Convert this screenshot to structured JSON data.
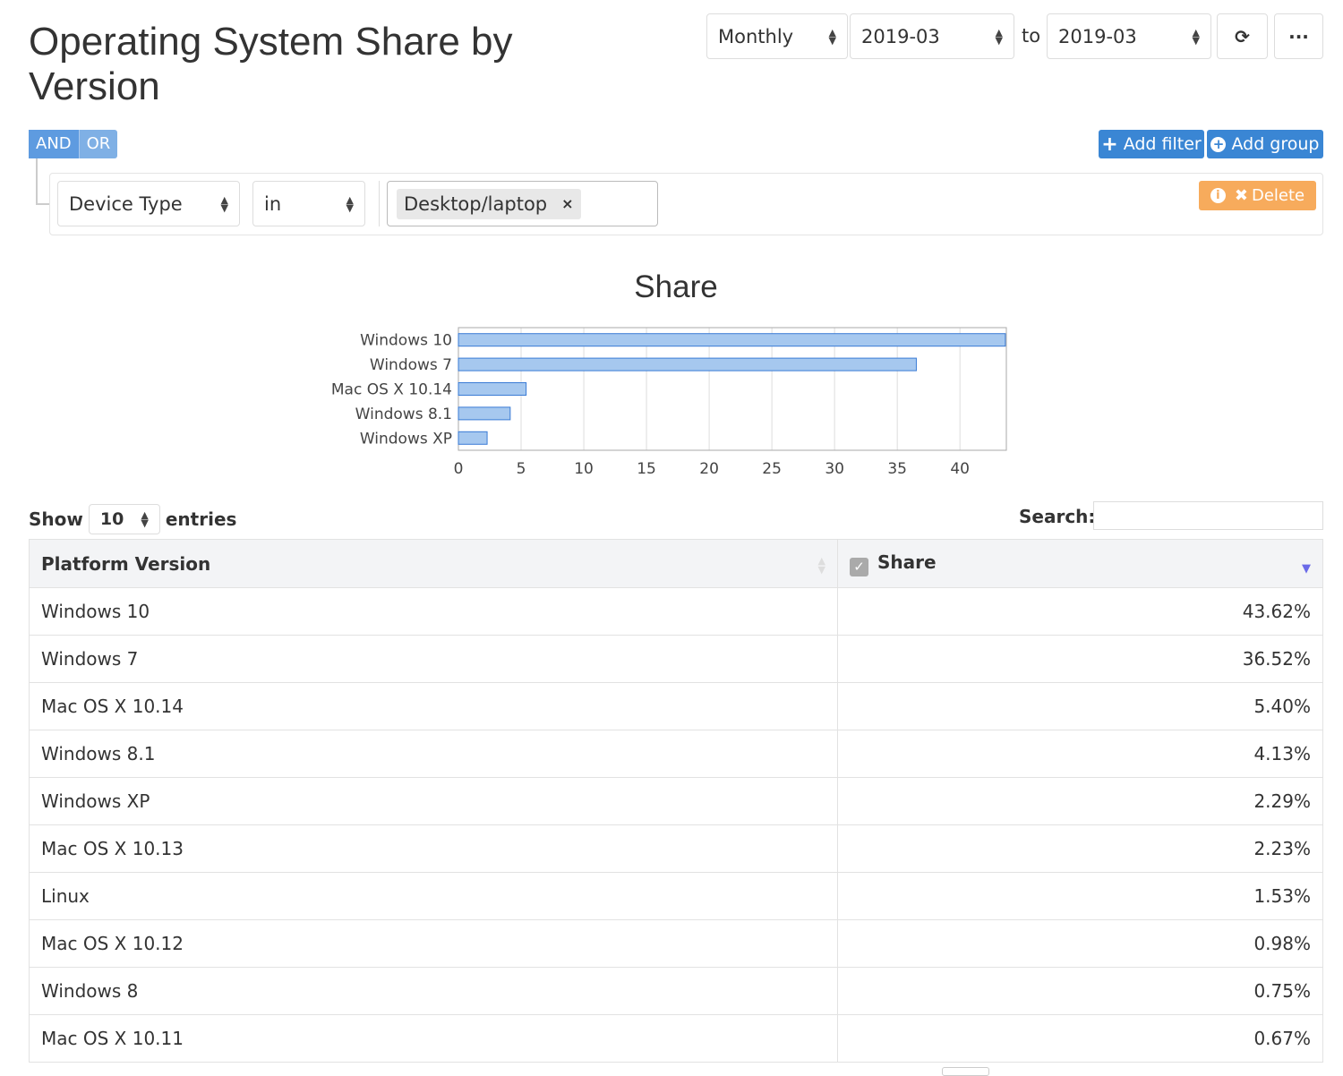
{
  "title": "Operating System Share by Version",
  "controls": {
    "period": "Monthly",
    "from": "2019-03",
    "to_label": "to",
    "to": "2019-03",
    "refresh_icon": "refresh-icon",
    "more_icon": "ellipsis-icon"
  },
  "filters": {
    "and": "AND",
    "or": "OR",
    "add_filter": "Add filter",
    "add_group": "Add group",
    "delete": "Delete",
    "rule": {
      "field": "Device Type",
      "operator": "in",
      "value": "Desktop/laptop",
      "remove": "×"
    }
  },
  "chart_data": {
    "type": "bar",
    "orientation": "horizontal",
    "title": "Share",
    "categories": [
      "Windows 10",
      "Windows 7",
      "Mac OS X 10.14",
      "Windows 8.1",
      "Windows XP"
    ],
    "values": [
      43.62,
      36.52,
      5.4,
      4.13,
      2.29
    ],
    "xticks": [
      0,
      5,
      10,
      15,
      20,
      25,
      30,
      35,
      40
    ],
    "xlim": [
      0,
      43.7
    ],
    "grid": true,
    "bar_color": "#a6c8ef",
    "bar_border": "#3a7bd5"
  },
  "table": {
    "show": "Show",
    "entries_value": "10",
    "entries": "entries",
    "search_label": "Search:",
    "search_value": "",
    "headers": [
      "Platform Version",
      "Share"
    ],
    "rows": [
      [
        "Windows 10",
        "43.62%"
      ],
      [
        "Windows 7",
        "36.52%"
      ],
      [
        "Mac OS X 10.14",
        "5.40%"
      ],
      [
        "Windows 8.1",
        "4.13%"
      ],
      [
        "Windows XP",
        "2.29%"
      ],
      [
        "Mac OS X 10.13",
        "2.23%"
      ],
      [
        "Linux",
        "1.53%"
      ],
      [
        "Mac OS X 10.12",
        "0.98%"
      ],
      [
        "Windows 8",
        "0.75%"
      ],
      [
        "Mac OS X 10.11",
        "0.67%"
      ]
    ]
  }
}
